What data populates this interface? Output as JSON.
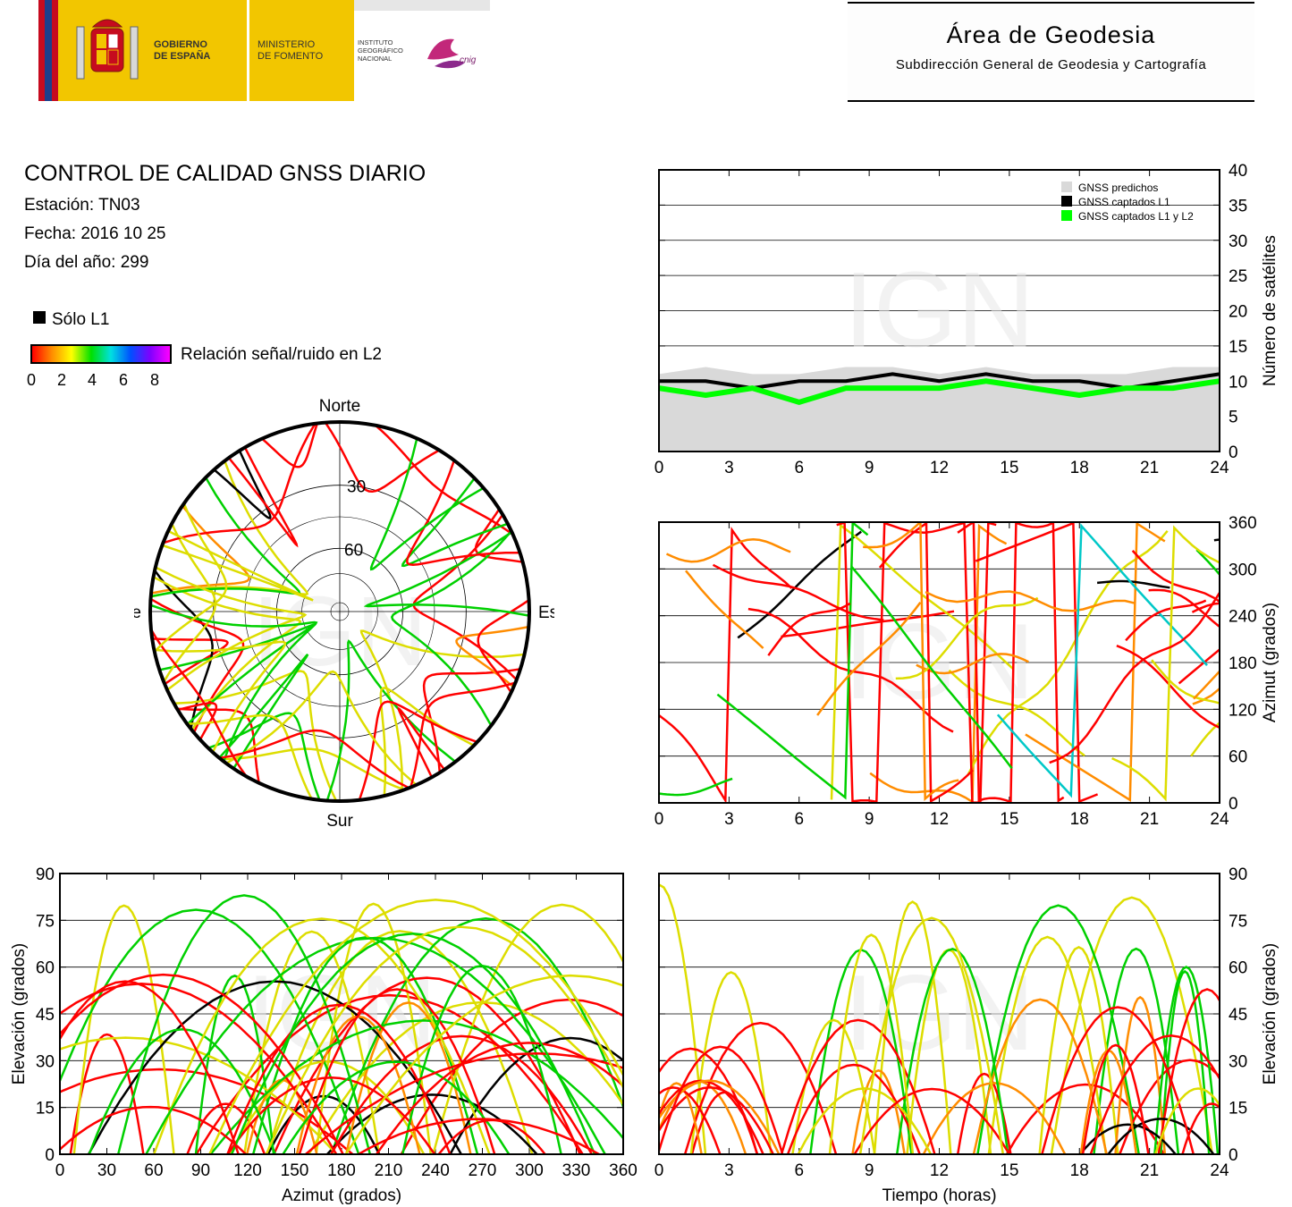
{
  "header": {
    "gov_label": "GOBIERNO\nDE ESPAÑA",
    "ministry_label": "MINISTERIO\nDE FOMENTO",
    "ign_label": "INSTITUTO\nGEOGRÁFICO\nNACIONAL",
    "cnig_label": "cnig",
    "area_title": "Área de Geodesia",
    "area_subtitle": "Subdirección General de Geodesia y Cartografía"
  },
  "info": {
    "title": "CONTROL DE CALIDAD GNSS DIARIO",
    "station": "Estación: TN03",
    "date": "Fecha: 2016 10 25",
    "doy": "Día del año: 299"
  },
  "legend": {
    "l1_only": "Sólo L1",
    "snr_label": "Relación señal/ruido en L2",
    "snr_ticks": [
      "0",
      "2",
      "4",
      "6",
      "8"
    ],
    "snr_colors": [
      "#ff0000",
      "#ff8c00",
      "#ffff00",
      "#00e000",
      "#00e0e0",
      "#0050ff",
      "#8000ff",
      "#ff00ff"
    ]
  },
  "watermark": "IGN",
  "chart_data": [
    {
      "type": "line",
      "id": "satellite-count",
      "ylabel": "Número de satélites",
      "xlim": [
        0,
        24
      ],
      "ylim": [
        0,
        40
      ],
      "xticks": [
        "0",
        "3",
        "6",
        "9",
        "12",
        "15",
        "18",
        "21",
        "24"
      ],
      "yticks": [
        "0",
        "5",
        "10",
        "15",
        "20",
        "25",
        "30",
        "35",
        "40"
      ],
      "grid": true,
      "legend_position": "top-right",
      "series": [
        {
          "name": "GNSS predichos",
          "color": "#d9d9d9",
          "x": [
            0,
            2,
            4,
            6,
            8,
            10,
            12,
            14,
            16,
            18,
            20,
            22,
            24
          ],
          "values": [
            11,
            12,
            11,
            11,
            12,
            12,
            11,
            12,
            11,
            11,
            11,
            12,
            12
          ]
        },
        {
          "name": "GNSS captados L1",
          "color": "#000000",
          "x": [
            0,
            2,
            4,
            6,
            8,
            10,
            12,
            14,
            16,
            18,
            20,
            22,
            24
          ],
          "values": [
            10,
            10,
            9,
            10,
            10,
            11,
            10,
            11,
            10,
            10,
            9,
            10,
            11
          ]
        },
        {
          "name": "GNSS captados L1 y L2",
          "color": "#00ff00",
          "x": [
            0,
            2,
            4,
            6,
            8,
            10,
            12,
            14,
            16,
            18,
            20,
            22,
            24
          ],
          "values": [
            9,
            8,
            9,
            7,
            9,
            9,
            9,
            10,
            9,
            8,
            9,
            9,
            10
          ]
        }
      ]
    },
    {
      "type": "scatter",
      "id": "azimuth-time",
      "ylabel": "Azimut (grados)",
      "xlim": [
        0,
        24
      ],
      "ylim": [
        0,
        360
      ],
      "xticks": [
        "0",
        "3",
        "6",
        "9",
        "12",
        "15",
        "18",
        "21",
        "24"
      ],
      "yticks": [
        "0",
        "60",
        "120",
        "180",
        "240",
        "300",
        "360"
      ],
      "grid": true
    },
    {
      "type": "scatter",
      "id": "elevation-azimuth",
      "xlabel": "Azimut (grados)",
      "ylabel": "Elevación (grados)",
      "xlim": [
        0,
        360
      ],
      "ylim": [
        0,
        90
      ],
      "xticks": [
        "0",
        "30",
        "60",
        "90",
        "120",
        "150",
        "180",
        "210",
        "240",
        "270",
        "300",
        "330",
        "360"
      ],
      "yticks": [
        "0",
        "15",
        "30",
        "45",
        "60",
        "75",
        "90"
      ],
      "grid": true
    },
    {
      "type": "scatter",
      "id": "elevation-time",
      "xlabel": "Tiempo (horas)",
      "ylabel": "Elevación (grados)",
      "xlim": [
        0,
        24
      ],
      "ylim": [
        0,
        90
      ],
      "xticks": [
        "0",
        "3",
        "6",
        "9",
        "12",
        "15",
        "18",
        "21",
        "24"
      ],
      "yticks": [
        "0",
        "15",
        "30",
        "45",
        "60",
        "75",
        "90"
      ],
      "grid": true
    },
    {
      "type": "scatter",
      "id": "skyplot",
      "directions": {
        "north": "Norte",
        "south": "Sur",
        "east": "Este",
        "west": "Oeste"
      },
      "ring_labels": [
        "30",
        "60"
      ]
    }
  ]
}
